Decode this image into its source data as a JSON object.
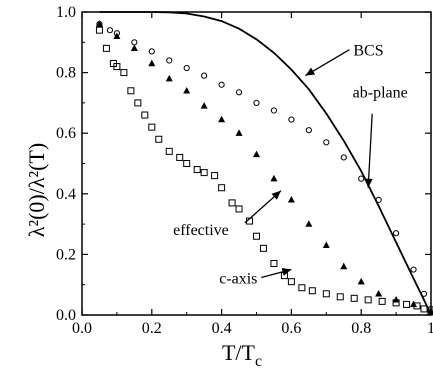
{
  "chart_data": {
    "type": "scatter",
    "xlim": [
      0,
      1
    ],
    "ylim": [
      0,
      1
    ],
    "xticks": [
      "0.0",
      "0.2",
      "0.4",
      "0.6",
      "0.8",
      "1"
    ],
    "yticks": [
      "0.0",
      "0.2",
      "0.4",
      "0.6",
      "0.8",
      "1.0"
    ],
    "xticks_values": [
      0,
      0.2,
      0.4,
      0.6,
      0.8,
      1.0
    ],
    "yticks_values": [
      0,
      0.2,
      0.4,
      0.6,
      0.8,
      1.0
    ],
    "xlabel": "T/T",
    "xlabel_sub": "c",
    "ylabel": "λ²(0)/λ²(T)",
    "grid": false,
    "series": [
      {
        "name": "BCS",
        "style": "line",
        "x": [
          0.05,
          0.1,
          0.15,
          0.2,
          0.25,
          0.3,
          0.35,
          0.4,
          0.45,
          0.5,
          0.55,
          0.6,
          0.65,
          0.7,
          0.75,
          0.8,
          0.85,
          0.9,
          0.95,
          0.98,
          1.0
        ],
        "values": [
          1.0,
          1.0,
          1.0,
          1.0,
          0.999,
          0.995,
          0.985,
          0.97,
          0.945,
          0.91,
          0.865,
          0.81,
          0.745,
          0.665,
          0.575,
          0.475,
          0.36,
          0.24,
          0.12,
          0.05,
          0.0
        ]
      },
      {
        "name": "ab-plane",
        "style": "circle",
        "x": [
          0.05,
          0.08,
          0.1,
          0.15,
          0.2,
          0.25,
          0.3,
          0.35,
          0.4,
          0.45,
          0.5,
          0.55,
          0.6,
          0.65,
          0.7,
          0.75,
          0.8,
          0.85,
          0.9,
          0.95,
          0.98,
          1.0
        ],
        "values": [
          0.96,
          0.94,
          0.93,
          0.9,
          0.87,
          0.84,
          0.815,
          0.79,
          0.76,
          0.735,
          0.7,
          0.675,
          0.645,
          0.61,
          0.57,
          0.52,
          0.45,
          0.38,
          0.27,
          0.15,
          0.07,
          0.02
        ]
      },
      {
        "name": "effective",
        "style": "triangle",
        "x": [
          0.05,
          0.1,
          0.15,
          0.2,
          0.25,
          0.3,
          0.35,
          0.4,
          0.45,
          0.5,
          0.55,
          0.6,
          0.65,
          0.7,
          0.75,
          0.8,
          0.85,
          0.9,
          0.95,
          1.0
        ],
        "values": [
          0.96,
          0.92,
          0.88,
          0.83,
          0.78,
          0.74,
          0.69,
          0.645,
          0.6,
          0.53,
          0.45,
          0.38,
          0.3,
          0.23,
          0.16,
          0.11,
          0.07,
          0.05,
          0.035,
          0.01
        ]
      },
      {
        "name": "c-axis",
        "style": "square",
        "x": [
          0.05,
          0.07,
          0.09,
          0.1,
          0.12,
          0.14,
          0.16,
          0.18,
          0.2,
          0.22,
          0.25,
          0.28,
          0.3,
          0.33,
          0.35,
          0.38,
          0.4,
          0.43,
          0.45,
          0.48,
          0.5,
          0.52,
          0.55,
          0.58,
          0.6,
          0.63,
          0.66,
          0.7,
          0.74,
          0.78,
          0.82,
          0.86,
          0.9,
          0.93,
          0.96,
          0.98,
          1.0
        ],
        "values": [
          0.94,
          0.88,
          0.83,
          0.82,
          0.8,
          0.74,
          0.7,
          0.66,
          0.62,
          0.58,
          0.54,
          0.52,
          0.5,
          0.48,
          0.47,
          0.46,
          0.42,
          0.37,
          0.35,
          0.31,
          0.26,
          0.22,
          0.17,
          0.13,
          0.11,
          0.09,
          0.08,
          0.07,
          0.06,
          0.055,
          0.05,
          0.045,
          0.04,
          0.035,
          0.03,
          0.02,
          0.01
        ]
      }
    ],
    "annotations": [
      {
        "text": "BCS",
        "target_x": 0.64,
        "target_y": 0.79,
        "pos": "upper-right"
      },
      {
        "text": "ab-plane",
        "target_x": 0.82,
        "target_y": 0.42,
        "pos": "right"
      },
      {
        "text": "effective",
        "target_x": 0.57,
        "target_y": 0.41,
        "pos": "lower-middle"
      },
      {
        "text": "c-axis",
        "target_x": 0.6,
        "target_y": 0.15,
        "pos": "bottom-middle"
      }
    ]
  }
}
